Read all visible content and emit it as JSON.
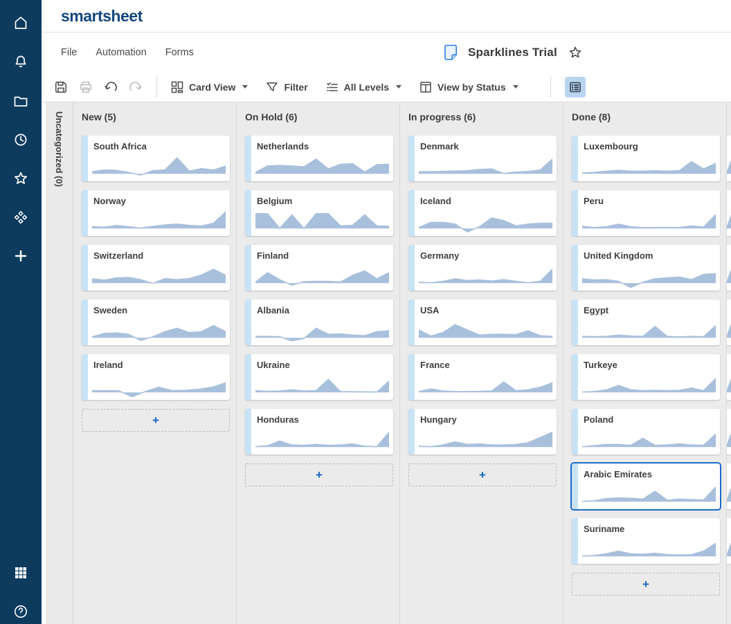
{
  "app": {
    "logo_text": "smartsheet"
  },
  "sidebar": {
    "icons": [
      "home-icon",
      "bell-icon",
      "folder-icon",
      "clock-icon",
      "star-icon",
      "solutions-icon",
      "plus-icon",
      "apps-grid-icon",
      "help-icon"
    ]
  },
  "menu": {
    "items": [
      "File",
      "Automation",
      "Forms"
    ]
  },
  "sheet": {
    "title": "Sparklines Trial"
  },
  "toolbar": {
    "labels": {
      "card_view": "Card View",
      "filter": "Filter",
      "levels": "All Levels",
      "view_by": "View by Status"
    }
  },
  "board": {
    "collapsed_lane_label": "Uncategorized (0)",
    "add_card_symbol": "+",
    "lanes": [
      {
        "title": "New (5)",
        "add_placeholder": true,
        "cards": [
          {
            "title": "South Africa",
            "spark": [
              0.12,
              0.22,
              0.2,
              0.08,
              -0.07,
              0.18,
              0.22,
              0.92,
              0.15,
              0.3,
              0.22,
              0.45
            ]
          },
          {
            "title": "Norway",
            "spark": [
              0.1,
              0.07,
              0.17,
              0.1,
              0.02,
              0.12,
              0.2,
              0.25,
              0.18,
              0.14,
              0.3,
              0.95
            ]
          },
          {
            "title": "Switzerland",
            "spark": [
              0.25,
              0.17,
              0.3,
              0.32,
              0.2,
              -0.02,
              0.26,
              0.2,
              0.26,
              0.46,
              0.8,
              0.45
            ]
          },
          {
            "title": "Sweden",
            "spark": [
              0.05,
              0.25,
              0.28,
              0.2,
              -0.15,
              0.05,
              0.35,
              0.55,
              0.3,
              0.35,
              0.7,
              0.35
            ]
          },
          {
            "title": "Ireland",
            "spark": [
              0.1,
              0.1,
              0.09,
              -0.25,
              0.05,
              0.3,
              0.1,
              0.12,
              0.18,
              0.3,
              0.55
            ]
          }
        ]
      },
      {
        "title": "On Hold (6)",
        "add_placeholder": true,
        "cards": [
          {
            "title": "Netherlands",
            "spark": [
              0.08,
              0.45,
              0.48,
              0.45,
              0.4,
              0.85,
              0.28,
              0.55,
              0.58,
              0.1,
              0.52,
              0.55
            ]
          },
          {
            "title": "Belgium",
            "spark": [
              0.85,
              0.85,
              0.0,
              0.78,
              0.0,
              0.85,
              0.85,
              0.15,
              0.18,
              0.78,
              0.15,
              0.13
            ]
          },
          {
            "title": "Finland",
            "spark": [
              0.05,
              0.6,
              0.2,
              -0.12,
              0.08,
              0.1,
              0.1,
              0.06,
              0.45,
              0.7,
              0.25,
              0.6
            ]
          },
          {
            "title": "Albania",
            "spark": [
              0.08,
              0.08,
              0.06,
              -0.18,
              -0.04,
              0.55,
              0.2,
              0.22,
              0.15,
              0.12,
              0.35,
              0.4
            ]
          },
          {
            "title": "Ukraine",
            "spark": [
              0.1,
              0.06,
              0.08,
              0.15,
              0.08,
              0.1,
              0.75,
              0.05,
              0.04,
              0.03,
              0.02,
              0.65
            ]
          },
          {
            "title": "Honduras",
            "spark": [
              0.02,
              0.08,
              0.35,
              0.12,
              0.1,
              0.15,
              0.1,
              0.12,
              0.18,
              0.05,
              0.02,
              0.85
            ]
          }
        ]
      },
      {
        "title": "In progress (6)",
        "add_placeholder": true,
        "cards": [
          {
            "title": "Denmark",
            "spark": [
              0.12,
              0.12,
              0.14,
              0.16,
              0.18,
              0.25,
              0.28,
              0.02,
              0.1,
              0.13,
              0.22,
              0.85
            ]
          },
          {
            "title": "Iceland",
            "spark": [
              0.05,
              0.35,
              0.35,
              0.25,
              -0.2,
              0.1,
              0.6,
              0.45,
              0.15,
              0.25,
              0.3,
              0.3
            ]
          },
          {
            "title": "Germany",
            "spark": [
              0.05,
              0.02,
              0.1,
              0.25,
              0.15,
              0.18,
              0.12,
              0.2,
              0.1,
              0.02,
              0.1,
              0.8
            ]
          },
          {
            "title": "USA",
            "spark": [
              0.45,
              0.1,
              0.3,
              0.75,
              0.45,
              0.15,
              0.2,
              0.2,
              0.18,
              0.4,
              0.12,
              0.08
            ]
          },
          {
            "title": "France",
            "spark": [
              0.05,
              0.2,
              0.08,
              0.05,
              0.05,
              0.06,
              0.08,
              0.6,
              0.1,
              0.15,
              0.3,
              0.55
            ]
          },
          {
            "title": "Hungary",
            "spark": [
              0.05,
              0.02,
              0.12,
              0.3,
              0.15,
              0.18,
              0.12,
              0.12,
              0.15,
              0.25,
              0.55,
              0.85
            ]
          }
        ]
      },
      {
        "title": "Done (8)",
        "add_placeholder": true,
        "cards": [
          {
            "title": "Luxembourg",
            "spark": [
              0.05,
              0.08,
              0.15,
              0.2,
              0.15,
              0.15,
              0.18,
              0.15,
              0.18,
              0.7,
              0.28,
              0.6
            ]
          },
          {
            "title": "Peru",
            "spark": [
              0.12,
              0.05,
              0.1,
              0.25,
              0.1,
              0.05,
              0.05,
              0.06,
              0.05,
              0.15,
              0.08,
              0.8
            ]
          },
          {
            "title": "United Kingdom",
            "spark": [
              0.25,
              0.18,
              0.2,
              0.1,
              -0.28,
              0.05,
              0.25,
              0.3,
              0.35,
              0.2,
              0.5,
              0.55
            ]
          },
          {
            "title": "Egypt",
            "spark": [
              0.08,
              0.06,
              0.08,
              0.15,
              0.1,
              0.08,
              0.65,
              0.08,
              0.05,
              0.08,
              0.06,
              0.7
            ]
          },
          {
            "title": "Turkeye",
            "spark": [
              0.02,
              0.05,
              0.15,
              0.4,
              0.15,
              0.1,
              0.12,
              0.1,
              0.12,
              0.25,
              0.1,
              0.8
            ]
          },
          {
            "title": "Poland",
            "spark": [
              0.02,
              0.08,
              0.15,
              0.15,
              0.1,
              0.5,
              0.1,
              0.12,
              0.18,
              0.12,
              0.1,
              0.75
            ]
          },
          {
            "title": "Arabic Emirates",
            "selected": true,
            "spark": [
              0.02,
              0.05,
              0.18,
              0.22,
              0.2,
              0.15,
              0.6,
              0.08,
              0.15,
              0.12,
              0.1,
              0.85
            ]
          },
          {
            "title": "Suriname",
            "spark": [
              0.02,
              0.05,
              0.15,
              0.3,
              0.15,
              0.12,
              0.18,
              0.1,
              0.08,
              0.1,
              0.3,
              0.75
            ]
          }
        ]
      }
    ],
    "partial_next_lane": {
      "visible_card_slivers": 8
    }
  },
  "colors": {
    "sidebar_bg": "#0d3b5e",
    "logo_navy": "#14477d",
    "spark_fill": "#a9c0dc",
    "card_strip_blue": "#c9e3f6",
    "selected_card_border": "#1b6ac9",
    "add_plus_blue": "#1467c6",
    "active_toolbar_button_bg": "#b9d4ef",
    "board_bg": "#ebebeb"
  }
}
